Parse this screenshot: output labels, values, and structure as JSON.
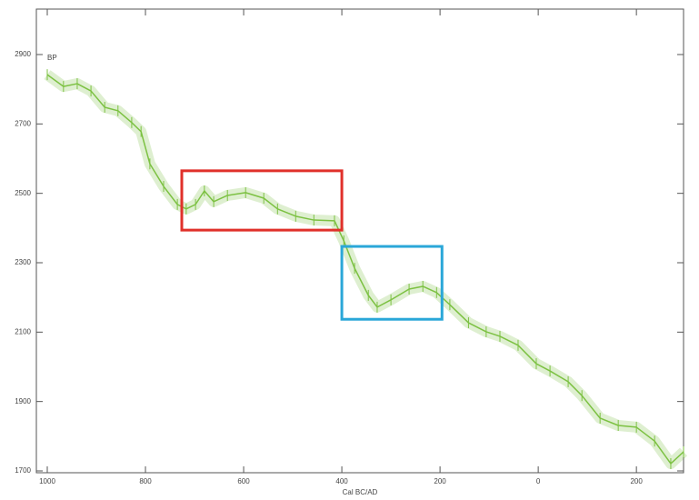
{
  "chart_data": {
    "type": "line",
    "y_label": "BP",
    "x_label": "Cal BC/AD",
    "x": [
      -1000,
      -967,
      -939,
      -911,
      -883,
      -856,
      -828,
      -809,
      -791,
      -763,
      -735,
      -717,
      -698,
      -680,
      -661,
      -633,
      -596,
      -559,
      -531,
      -494,
      -457,
      -415,
      -396,
      -374,
      -346,
      -328,
      -300,
      -263,
      -235,
      -207,
      -180,
      -142,
      -106,
      -78,
      -41,
      -4,
      24,
      61,
      89,
      126,
      163,
      200,
      237,
      270,
      296
    ],
    "series": [
      {
        "color": "#7cc142",
        "values": [
          2842,
          2808,
          2816,
          2795,
          2748,
          2738,
          2704,
          2678,
          2585,
          2520,
          2468,
          2455,
          2468,
          2507,
          2476,
          2494,
          2502,
          2486,
          2455,
          2434,
          2423,
          2421,
          2363,
          2284,
          2206,
          2172,
          2193,
          2224,
          2232,
          2214,
          2179,
          2127,
          2101,
          2088,
          2062,
          2009,
          1988,
          1957,
          1917,
          1852,
          1831,
          1826,
          1786,
          1721,
          1755
        ]
      }
    ],
    "regions": [
      {
        "color": "#e0302a",
        "x": [
          -726,
          -400
        ],
        "y": [
          2394,
          2565
        ]
      },
      {
        "color": "#2aa7d8",
        "x": [
          -400,
          -196
        ],
        "y": [
          2137,
          2347
        ]
      }
    ],
    "xlim": [
      -1000,
      296
    ],
    "ylim": [
      1700,
      2900
    ],
    "xticks": [
      {
        "value": -1000,
        "label": "1000"
      },
      {
        "value": -800,
        "label": "800"
      },
      {
        "value": -600,
        "label": "600"
      },
      {
        "value": -400,
        "label": "400"
      },
      {
        "value": -200,
        "label": "200"
      },
      0,
      200
    ],
    "yticks": [
      1700,
      1900,
      2100,
      2300,
      2500,
      2700,
      2900
    ]
  }
}
